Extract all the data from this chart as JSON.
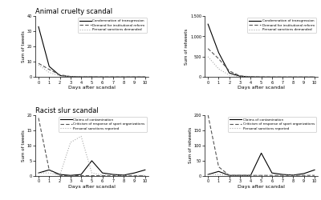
{
  "title_top": "Animal cruelty scandal",
  "title_bottom": "Racist slur scandal",
  "days": [
    0,
    1,
    2,
    3,
    4,
    5,
    6,
    7,
    8,
    9,
    10
  ],
  "ac_tweets_cond": [
    33,
    7,
    1,
    0.3,
    0.1,
    0.1,
    0.05,
    0.05,
    0.05,
    0.05,
    0.05
  ],
  "ac_tweets_demand": [
    9,
    5,
    1.5,
    0.4,
    0.1,
    0.1,
    0.05,
    0.05,
    0.05,
    0.05,
    0.05
  ],
  "ac_tweets_personal": [
    8,
    3,
    0.8,
    0.2,
    0.1,
    0.05,
    0.05,
    0.05,
    0.05,
    0.05,
    0.05
  ],
  "ac_rt_cond": [
    1300,
    600,
    100,
    20,
    5,
    2,
    1,
    0.5,
    0.5,
    0.5,
    0.5
  ],
  "ac_rt_demand": [
    700,
    450,
    150,
    30,
    8,
    3,
    1,
    0.5,
    0.5,
    0.5,
    0.5
  ],
  "ac_rt_personal": [
    500,
    200,
    50,
    10,
    3,
    1,
    0.5,
    0.5,
    0.5,
    0.5,
    0.5
  ],
  "rs_tweets_claims": [
    1,
    2,
    0.5,
    0.2,
    0.5,
    5,
    1,
    0.5,
    0.3,
    1,
    2
  ],
  "rs_tweets_criticism": [
    19,
    2,
    0.2,
    0.1,
    0.1,
    0.1,
    0.1,
    0.1,
    0.1,
    0.1,
    0.1
  ],
  "rs_tweets_personal": [
    1,
    1,
    0.2,
    11,
    13,
    1,
    0.3,
    0.2,
    0.2,
    0.2,
    0.2
  ],
  "rs_rt_claims": [
    5,
    15,
    2,
    2,
    2,
    75,
    10,
    5,
    3,
    8,
    20
  ],
  "rs_rt_criticism": [
    200,
    30,
    2,
    2,
    2,
    2,
    2,
    2,
    2,
    2,
    2
  ],
  "rs_rt_personal": [
    5,
    5,
    2,
    2,
    2,
    2,
    2,
    2,
    2,
    2,
    2
  ],
  "ylabel_tweets": "Sum of tweets",
  "ylabel_rt": "Sum of retweets",
  "xlabel": "Days after scandal",
  "legend_ac": [
    "Condemnation of transgression",
    "Demand for institutional reform",
    "Personal sanctions demanded"
  ],
  "legend_rs": [
    "Claims of contamination",
    "Criticism of response of sport organizations",
    "Personal sanctions reported"
  ],
  "color_solid": "#000000",
  "color_dashed": "#555555",
  "color_dotted": "#aaaaaa",
  "bg_color": "#ffffff",
  "ac_tweets_ylim": [
    0,
    40
  ],
  "ac_tweets_yticks": [
    0,
    10,
    20,
    30,
    40
  ],
  "ac_tweets_ytick_labels": [
    "0",
    "10",
    "20",
    "30",
    "40"
  ],
  "ac_rt_ylim": [
    0,
    1500
  ],
  "ac_rt_yticks": [
    0,
    500,
    1000,
    1500
  ],
  "ac_rt_ytick_labels": [
    "0",
    "500",
    "1,000",
    "1,500"
  ],
  "rs_tweets_ylim": [
    0,
    20
  ],
  "rs_tweets_yticks": [
    0,
    5,
    10,
    15,
    20
  ],
  "rs_tweets_ytick_labels": [
    "0",
    "5",
    "10",
    "15",
    "20"
  ],
  "rs_rt_ylim": [
    0,
    200
  ],
  "rs_rt_yticks": [
    0,
    50,
    100,
    150,
    200
  ],
  "rs_rt_ytick_labels": [
    "0",
    "50",
    "100",
    "150",
    "200"
  ]
}
